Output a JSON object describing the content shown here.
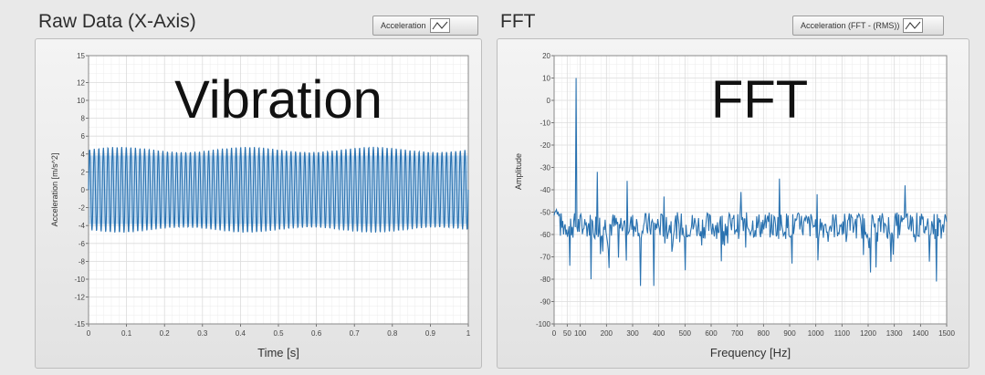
{
  "raw_panel": {
    "title": "Raw Data (X-Axis)",
    "legend_label": "Acceleration"
  },
  "fft_panel": {
    "title": "FFT",
    "legend_label": "Acceleration (FFT - (RMS))"
  },
  "colors": {
    "series": "#2a72b0",
    "fill": "#5d9fd6",
    "grid_major": "#dcdcdc",
    "grid_minor": "#ececec",
    "plot_bg": "#ffffff"
  },
  "chart_data": [
    {
      "type": "line",
      "title": "Raw Data (X-Axis)",
      "overlay_text": "Vibration",
      "xlabel": "Time [s]",
      "ylabel": "Acceleration [m/s^2]",
      "xlim": [
        0,
        1
      ],
      "ylim": [
        -15,
        15
      ],
      "x_ticks": [
        "0",
        "0.1",
        "0.2",
        "0.3",
        "0.4",
        "0.5",
        "0.6",
        "0.7",
        "0.8",
        "0.9",
        "1"
      ],
      "y_ticks": [
        "15",
        "12",
        "10",
        "8",
        "6",
        "4",
        "2",
        "0",
        "-2",
        "-4",
        "-6",
        "-8",
        "-10",
        "-12",
        "-15"
      ],
      "y_tick_values": [
        15,
        12,
        10,
        8,
        6,
        4,
        2,
        0,
        -2,
        -4,
        -6,
        -8,
        -10,
        -12,
        -15
      ],
      "grid": true,
      "series": [
        {
          "name": "Acceleration",
          "signal": "oscillation between approximately -4.8 and 4.8 m/s^2, about 83 cycles per second, spanning 0 to 1 s",
          "amplitude": 4.8,
          "cycles_per_second": 83,
          "x_range": [
            0,
            1
          ]
        }
      ]
    },
    {
      "type": "line",
      "title": "FFT",
      "overlay_text": "FFT",
      "xlabel": "Frequency [Hz]",
      "ylabel": "Amplitude",
      "xlim": [
        0,
        1500
      ],
      "ylim": [
        -100,
        20
      ],
      "x_ticks": [
        "0",
        "50",
        "100",
        "200",
        "300",
        "400",
        "500",
        "600",
        "700",
        "800",
        "900",
        "1000",
        "1100",
        "1200",
        "1300",
        "1400",
        "1500"
      ],
      "x_tick_values": [
        0,
        50,
        100,
        200,
        300,
        400,
        500,
        600,
        700,
        800,
        900,
        1000,
        1100,
        1200,
        1300,
        1400,
        1500
      ],
      "y_ticks": [
        "20",
        "10",
        "0",
        "-10",
        "-20",
        "-30",
        "-40",
        "-50",
        "-60",
        "-70",
        "-80",
        "-90",
        "-100"
      ],
      "y_tick_values": [
        20,
        10,
        0,
        -10,
        -20,
        -30,
        -40,
        -50,
        -60,
        -70,
        -80,
        -90,
        -100
      ],
      "grid": true,
      "series": [
        {
          "name": "Acceleration (FFT - (RMS))",
          "noise_floor": -56,
          "x_range": [
            0,
            1500
          ],
          "peaks": [
            {
              "x": 83,
              "y": 10
            },
            {
              "x": 35,
              "y": -60
            },
            {
              "x": 166,
              "y": -32
            },
            {
              "x": 280,
              "y": -36
            },
            {
              "x": 420,
              "y": -43
            },
            {
              "x": 715,
              "y": -41
            },
            {
              "x": 860,
              "y": -35
            },
            {
              "x": 1005,
              "y": -42
            },
            {
              "x": 1340,
              "y": -38
            }
          ],
          "dips": [
            {
              "x": 60,
              "y": -74
            },
            {
              "x": 140,
              "y": -80
            },
            {
              "x": 210,
              "y": -75
            },
            {
              "x": 330,
              "y": -83
            },
            {
              "x": 380,
              "y": -83
            },
            {
              "x": 500,
              "y": -76
            },
            {
              "x": 640,
              "y": -72
            },
            {
              "x": 910,
              "y": -73
            },
            {
              "x": 1210,
              "y": -77
            },
            {
              "x": 1460,
              "y": -81
            }
          ]
        }
      ]
    }
  ]
}
